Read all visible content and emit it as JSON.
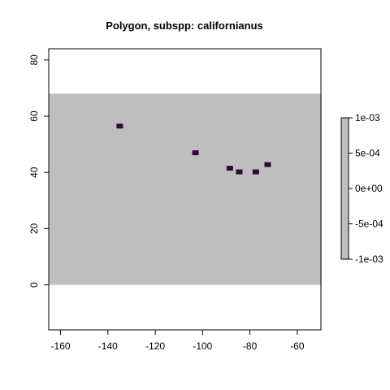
{
  "chart_data": {
    "type": "heatmap",
    "title": "Polygon, subspp: californianus",
    "xlabel": "",
    "ylabel": "",
    "xlim": [
      -165,
      -50
    ],
    "ylim": [
      -16,
      84
    ],
    "x_ticks": [
      -160,
      -140,
      -120,
      -100,
      -80,
      -60
    ],
    "y_ticks": [
      0,
      20,
      40,
      60,
      80
    ],
    "raster_extent": {
      "x": [
        -165,
        -50
      ],
      "y": [
        0,
        68
      ]
    },
    "raster_color": "#bebebe",
    "points": [
      {
        "x": -135,
        "y": 56.5
      },
      {
        "x": -103,
        "y": 47
      },
      {
        "x": -88.5,
        "y": 41.5
      },
      {
        "x": -84.5,
        "y": 40.2
      },
      {
        "x": -77.5,
        "y": 40.2
      },
      {
        "x": -72.5,
        "y": 42.8
      }
    ],
    "point_color": "#300a33",
    "legend": {
      "placement": "right",
      "color": "#bebebe",
      "range": [
        -0.001,
        0.001
      ],
      "ticks": [
        {
          "value": 0.001,
          "label": "1e-03"
        },
        {
          "value": 0.0005,
          "label": "5e-04"
        },
        {
          "value": 0,
          "label": "0e+00"
        },
        {
          "value": -0.0005,
          "label": "-5e-04"
        },
        {
          "value": -0.001,
          "label": "-1e-03"
        }
      ]
    },
    "grid": false
  }
}
